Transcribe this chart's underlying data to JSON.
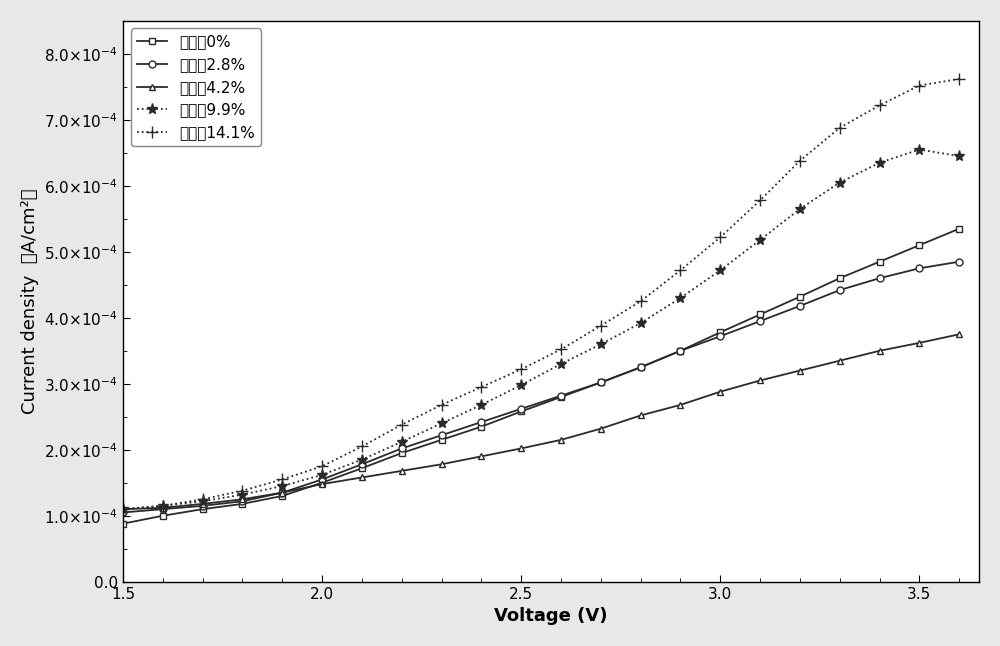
{
  "xlabel": "Voltage (V)",
  "ylabel": "Current density  （A/cm²）",
  "xlim": [
    1.5,
    3.65
  ],
  "ylim": [
    0.0,
    0.00085
  ],
  "yticks": [
    0.0,
    0.0001,
    0.0002,
    0.0003,
    0.0004,
    0.0005,
    0.0006,
    0.0007,
    0.0008
  ],
  "xticks": [
    1.5,
    2.0,
    2.5,
    3.0,
    3.5
  ],
  "series": [
    {
      "label": "拉伸率0%",
      "linestyle": "-",
      "marker": "s",
      "color": "#2a2a2a",
      "x": [
        1.5,
        1.6,
        1.7,
        1.8,
        1.9,
        2.0,
        2.1,
        2.2,
        2.3,
        2.4,
        2.5,
        2.6,
        2.7,
        2.8,
        2.9,
        3.0,
        3.1,
        3.2,
        3.3,
        3.4,
        3.5,
        3.6
      ],
      "y": [
        8.8e-05,
        0.0001,
        0.00011,
        0.000118,
        0.00013,
        0.00015,
        0.000172,
        0.000195,
        0.000215,
        0.000235,
        0.000258,
        0.00028,
        0.000302,
        0.000325,
        0.00035,
        0.000378,
        0.000405,
        0.000432,
        0.00046,
        0.000485,
        0.00051,
        0.000535
      ]
    },
    {
      "label": "拉伸率2.8%",
      "linestyle": "-",
      "marker": "o",
      "color": "#2a2a2a",
      "x": [
        1.5,
        1.6,
        1.7,
        1.8,
        1.9,
        2.0,
        2.1,
        2.2,
        2.3,
        2.4,
        2.5,
        2.6,
        2.7,
        2.8,
        2.9,
        3.0,
        3.1,
        3.2,
        3.3,
        3.4,
        3.5,
        3.6
      ],
      "y": [
        0.000105,
        0.00011,
        0.000115,
        0.000122,
        0.000135,
        0.000155,
        0.000178,
        0.000202,
        0.000222,
        0.000242,
        0.000262,
        0.000282,
        0.000302,
        0.000325,
        0.00035,
        0.000372,
        0.000395,
        0.000418,
        0.000442,
        0.00046,
        0.000475,
        0.000485
      ]
    },
    {
      "label": "拉伸率4.2%",
      "linestyle": "-",
      "marker": "^",
      "color": "#2a2a2a",
      "x": [
        1.5,
        1.6,
        1.7,
        1.8,
        1.9,
        2.0,
        2.1,
        2.2,
        2.3,
        2.4,
        2.5,
        2.6,
        2.7,
        2.8,
        2.9,
        3.0,
        3.1,
        3.2,
        3.3,
        3.4,
        3.5,
        3.6
      ],
      "y": [
        0.00011,
        0.000112,
        0.000118,
        0.000125,
        0.000135,
        0.000148,
        0.000158,
        0.000168,
        0.000178,
        0.00019,
        0.000202,
        0.000215,
        0.000232,
        0.000252,
        0.000268,
        0.000288,
        0.000305,
        0.00032,
        0.000335,
        0.00035,
        0.000362,
        0.000375
      ]
    },
    {
      "label": "拉伸率9.9%",
      "linestyle": ":",
      "marker": "*",
      "color": "#2a2a2a",
      "x": [
        1.5,
        1.6,
        1.7,
        1.8,
        1.9,
        2.0,
        2.1,
        2.2,
        2.3,
        2.4,
        2.5,
        2.6,
        2.7,
        2.8,
        2.9,
        3.0,
        3.1,
        3.2,
        3.3,
        3.4,
        3.5,
        3.6
      ],
      "y": [
        0.00011,
        0.000115,
        0.000122,
        0.000132,
        0.000145,
        0.000162,
        0.000185,
        0.000212,
        0.00024,
        0.000268,
        0.000298,
        0.00033,
        0.00036,
        0.000392,
        0.00043,
        0.000472,
        0.000518,
        0.000565,
        0.000605,
        0.000635,
        0.000655,
        0.000645
      ]
    },
    {
      "label": "拉伸率14.1%",
      "linestyle": ":",
      "marker": "+",
      "color": "#2a2a2a",
      "x": [
        1.5,
        1.6,
        1.7,
        1.8,
        1.9,
        2.0,
        2.1,
        2.2,
        2.3,
        2.4,
        2.5,
        2.6,
        2.7,
        2.8,
        2.9,
        3.0,
        3.1,
        3.2,
        3.3,
        3.4,
        3.5,
        3.6
      ],
      "y": [
        0.00011,
        0.000115,
        0.000125,
        0.000138,
        0.000155,
        0.000175,
        0.000205,
        0.000238,
        0.000268,
        0.000295,
        0.000322,
        0.000352,
        0.000388,
        0.000425,
        0.000472,
        0.000522,
        0.000578,
        0.000638,
        0.000688,
        0.000722,
        0.000752,
        0.000762
      ]
    }
  ],
  "legend_loc": "upper left",
  "markersize": 5,
  "linewidth": 1.3,
  "font_size_label": 13,
  "font_size_tick": 11,
  "font_size_legend": 11
}
